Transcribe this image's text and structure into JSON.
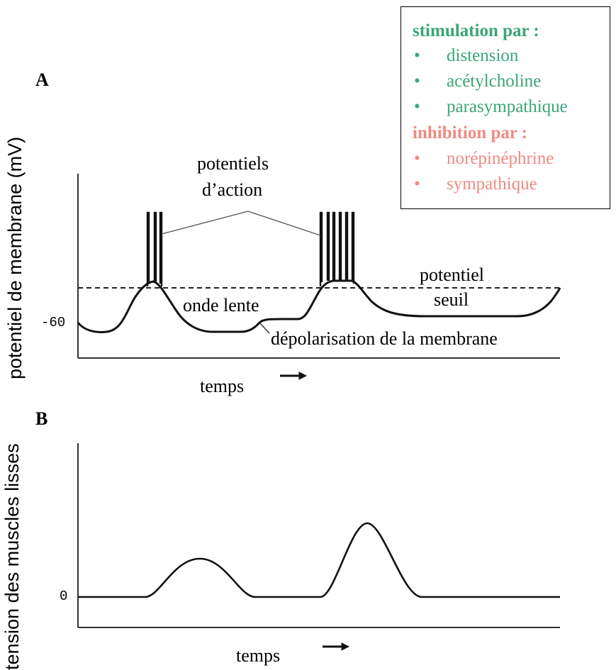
{
  "panel_a": {
    "letter": "A",
    "y_axis_title": "potentiel de membrane (mV)",
    "y_tick_value": "-60",
    "label_action_potentials_line1": "potentiels",
    "label_action_potentials_line2": "d’action",
    "label_threshold_line1": "potentiel",
    "label_threshold_line2": "seuil",
    "label_slow_wave": "onde lente",
    "label_depolarization": "dépolarisation de la membrane",
    "x_axis_title": "temps"
  },
  "panel_b": {
    "letter": "B",
    "y_axis_title": "tension des muscles lisses",
    "y_tick_value": "0",
    "x_axis_title": "temps"
  },
  "legend": {
    "stimulation_heading": "stimulation par :",
    "stimulation_items": [
      "distension",
      "acétylcholine",
      "parasympathique"
    ],
    "inhibition_heading": "inhibition par :",
    "inhibition_items": [
      "norépinéphrine",
      "sympathique"
    ],
    "bullet": "•",
    "stimulation_color": "#3aa57a",
    "inhibition_color": "#f08a82"
  }
}
